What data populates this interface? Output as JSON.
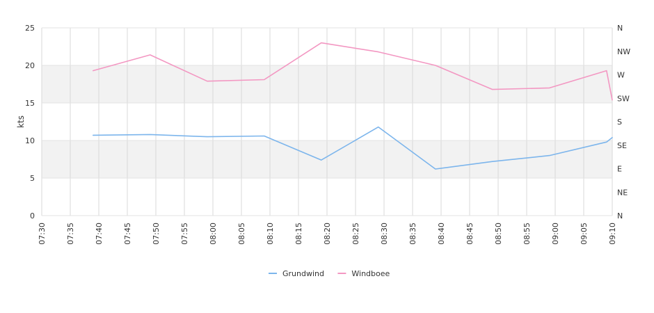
{
  "chart_data": {
    "type": "line",
    "ylabel": "kts",
    "ylim": [
      0,
      25
    ],
    "yticks": [
      "0",
      "5",
      "10",
      "15",
      "20",
      "25"
    ],
    "x_range": [
      "07:30",
      "09:10"
    ],
    "xticks": [
      "07:30",
      "07:35",
      "07:40",
      "07:45",
      "07:50",
      "07:55",
      "08:00",
      "08:05",
      "08:10",
      "08:15",
      "08:20",
      "08:25",
      "08:30",
      "08:35",
      "08:40",
      "08:45",
      "08:50",
      "08:55",
      "09:00",
      "09:05",
      "09:10"
    ],
    "direction_axis": [
      "N",
      "NW",
      "W",
      "SW",
      "S",
      "SE",
      "E",
      "NE",
      "N"
    ],
    "bands": [
      [
        5,
        10
      ],
      [
        15,
        20
      ]
    ],
    "grid": true,
    "legend_position": "bottom-center",
    "series": [
      {
        "name": "Grundwind",
        "color": "#7cb5ec",
        "x": [
          "07:39",
          "07:49",
          "07:59",
          "08:09",
          "08:19",
          "08:29",
          "08:39",
          "08:49",
          "08:59",
          "09:09",
          "09:10"
        ],
        "values": [
          10.7,
          10.8,
          10.5,
          10.6,
          7.4,
          11.8,
          6.2,
          7.2,
          8.0,
          9.8,
          10.4
        ]
      },
      {
        "name": "Windboee",
        "color": "#f397c2",
        "x": [
          "07:39",
          "07:49",
          "07:59",
          "08:09",
          "08:19",
          "08:29",
          "08:39",
          "08:49",
          "08:59",
          "09:09",
          "09:10"
        ],
        "values": [
          19.3,
          21.4,
          17.9,
          18.1,
          23.0,
          21.8,
          20.0,
          16.8,
          17.0,
          19.3,
          15.4
        ]
      }
    ]
  }
}
